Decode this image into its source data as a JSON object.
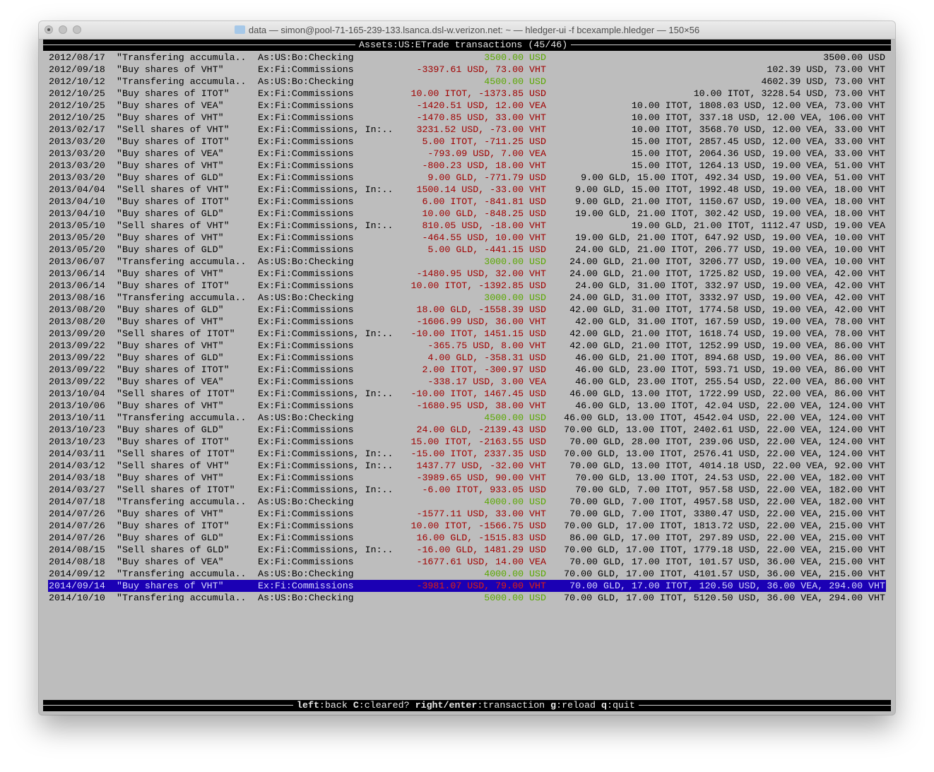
{
  "window": {
    "title": "data — simon@pool-71-165-239-133.lsanca.dsl-w.verizon.net: ~ — hledger-ui -f bcexample.hledger — 150×56"
  },
  "header": {
    "account": "Assets:US:ETrade",
    "label": "transactions",
    "count": "(45/46)"
  },
  "footer": {
    "keys": [
      {
        "key": "left",
        "action": "back"
      },
      {
        "key": "C",
        "action": "cleared?"
      },
      {
        "key": "right/enter",
        "action": "transaction"
      },
      {
        "key": "g",
        "action": "reload"
      },
      {
        "key": "q",
        "action": "quit"
      }
    ]
  },
  "colors": {
    "background": "#bdbdbd",
    "positive": "#5aa800",
    "negative": "#a00000",
    "selected_bg": "#1b00b4",
    "selected_amount": "#e02010"
  },
  "selected_index": 44,
  "rows": [
    [
      "2012/08/17",
      "\"Transfering accumula..",
      "As:US:Bo:Checking",
      "3500.00 USD",
      "positive",
      "3500.00 USD"
    ],
    [
      "2012/09/18",
      "\"Buy shares of VHT\"",
      "Ex:Fi:Commissions",
      "-3397.61 USD, 73.00 VHT",
      "negative",
      "102.39 USD, 73.00 VHT"
    ],
    [
      "2012/10/12",
      "\"Transfering accumula..",
      "As:US:Bo:Checking",
      "4500.00 USD",
      "positive",
      "4602.39 USD, 73.00 VHT"
    ],
    [
      "2012/10/25",
      "\"Buy shares of ITOT\"",
      "Ex:Fi:Commissions",
      "10.00 ITOT, -1373.85 USD",
      "negative",
      "10.00 ITOT, 3228.54 USD, 73.00 VHT"
    ],
    [
      "2012/10/25",
      "\"Buy shares of VEA\"",
      "Ex:Fi:Commissions",
      "-1420.51 USD, 12.00 VEA",
      "negative",
      "10.00 ITOT, 1808.03 USD, 12.00 VEA, 73.00 VHT"
    ],
    [
      "2012/10/25",
      "\"Buy shares of VHT\"",
      "Ex:Fi:Commissions",
      "-1470.85 USD, 33.00 VHT",
      "negative",
      "10.00 ITOT, 337.18 USD, 12.00 VEA, 106.00 VHT"
    ],
    [
      "2013/02/17",
      "\"Sell shares of VHT\"",
      "Ex:Fi:Commissions, In:..",
      "3231.52 USD, -73.00 VHT",
      "negative",
      "10.00 ITOT, 3568.70 USD, 12.00 VEA, 33.00 VHT"
    ],
    [
      "2013/03/20",
      "\"Buy shares of ITOT\"",
      "Ex:Fi:Commissions",
      "5.00 ITOT, -711.25 USD",
      "negative",
      "15.00 ITOT, 2857.45 USD, 12.00 VEA, 33.00 VHT"
    ],
    [
      "2013/03/20",
      "\"Buy shares of VEA\"",
      "Ex:Fi:Commissions",
      "-793.09 USD, 7.00 VEA",
      "negative",
      "15.00 ITOT, 2064.36 USD, 19.00 VEA, 33.00 VHT"
    ],
    [
      "2013/03/20",
      "\"Buy shares of VHT\"",
      "Ex:Fi:Commissions",
      "-800.23 USD, 18.00 VHT",
      "negative",
      "15.00 ITOT, 1264.13 USD, 19.00 VEA, 51.00 VHT"
    ],
    [
      "2013/03/20",
      "\"Buy shares of GLD\"",
      "Ex:Fi:Commissions",
      "9.00 GLD, -771.79 USD",
      "negative",
      "9.00 GLD, 15.00 ITOT, 492.34 USD, 19.00 VEA, 51.00 VHT"
    ],
    [
      "2013/04/04",
      "\"Sell shares of VHT\"",
      "Ex:Fi:Commissions, In:..",
      "1500.14 USD, -33.00 VHT",
      "negative",
      "9.00 GLD, 15.00 ITOT, 1992.48 USD, 19.00 VEA, 18.00 VHT"
    ],
    [
      "2013/04/10",
      "\"Buy shares of ITOT\"",
      "Ex:Fi:Commissions",
      "6.00 ITOT, -841.81 USD",
      "negative",
      "9.00 GLD, 21.00 ITOT, 1150.67 USD, 19.00 VEA, 18.00 VHT"
    ],
    [
      "2013/04/10",
      "\"Buy shares of GLD\"",
      "Ex:Fi:Commissions",
      "10.00 GLD, -848.25 USD",
      "negative",
      "19.00 GLD, 21.00 ITOT, 302.42 USD, 19.00 VEA, 18.00 VHT"
    ],
    [
      "2013/05/10",
      "\"Sell shares of VHT\"",
      "Ex:Fi:Commissions, In:..",
      "810.05 USD, -18.00 VHT",
      "negative",
      "19.00 GLD, 21.00 ITOT, 1112.47 USD, 19.00 VEA"
    ],
    [
      "2013/05/20",
      "\"Buy shares of VHT\"",
      "Ex:Fi:Commissions",
      "-464.55 USD, 10.00 VHT",
      "negative",
      "19.00 GLD, 21.00 ITOT, 647.92 USD, 19.00 VEA, 10.00 VHT"
    ],
    [
      "2013/05/20",
      "\"Buy shares of GLD\"",
      "Ex:Fi:Commissions",
      "5.00 GLD, -441.15 USD",
      "negative",
      "24.00 GLD, 21.00 ITOT, 206.77 USD, 19.00 VEA, 10.00 VHT"
    ],
    [
      "2013/06/07",
      "\"Transfering accumula..",
      "As:US:Bo:Checking",
      "3000.00 USD",
      "positive",
      "24.00 GLD, 21.00 ITOT, 3206.77 USD, 19.00 VEA, 10.00 VHT"
    ],
    [
      "2013/06/14",
      "\"Buy shares of VHT\"",
      "Ex:Fi:Commissions",
      "-1480.95 USD, 32.00 VHT",
      "negative",
      "24.00 GLD, 21.00 ITOT, 1725.82 USD, 19.00 VEA, 42.00 VHT"
    ],
    [
      "2013/06/14",
      "\"Buy shares of ITOT\"",
      "Ex:Fi:Commissions",
      "10.00 ITOT, -1392.85 USD",
      "negative",
      "24.00 GLD, 31.00 ITOT, 332.97 USD, 19.00 VEA, 42.00 VHT"
    ],
    [
      "2013/08/16",
      "\"Transfering accumula..",
      "As:US:Bo:Checking",
      "3000.00 USD",
      "positive",
      "24.00 GLD, 31.00 ITOT, 3332.97 USD, 19.00 VEA, 42.00 VHT"
    ],
    [
      "2013/08/20",
      "\"Buy shares of GLD\"",
      "Ex:Fi:Commissions",
      "18.00 GLD, -1558.39 USD",
      "negative",
      "42.00 GLD, 31.00 ITOT, 1774.58 USD, 19.00 VEA, 42.00 VHT"
    ],
    [
      "2013/08/20",
      "\"Buy shares of VHT\"",
      "Ex:Fi:Commissions",
      "-1606.99 USD, 36.00 VHT",
      "negative",
      "42.00 GLD, 31.00 ITOT, 167.59 USD, 19.00 VEA, 78.00 VHT"
    ],
    [
      "2013/09/20",
      "\"Sell shares of ITOT\"",
      "Ex:Fi:Commissions, In:..",
      "-10.00 ITOT, 1451.15 USD",
      "negative",
      "42.00 GLD, 21.00 ITOT, 1618.74 USD, 19.00 VEA, 78.00 VHT"
    ],
    [
      "2013/09/22",
      "\"Buy shares of VHT\"",
      "Ex:Fi:Commissions",
      "-365.75 USD, 8.00 VHT",
      "negative",
      "42.00 GLD, 21.00 ITOT, 1252.99 USD, 19.00 VEA, 86.00 VHT"
    ],
    [
      "2013/09/22",
      "\"Buy shares of GLD\"",
      "Ex:Fi:Commissions",
      "4.00 GLD, -358.31 USD",
      "negative",
      "46.00 GLD, 21.00 ITOT, 894.68 USD, 19.00 VEA, 86.00 VHT"
    ],
    [
      "2013/09/22",
      "\"Buy shares of ITOT\"",
      "Ex:Fi:Commissions",
      "2.00 ITOT, -300.97 USD",
      "negative",
      "46.00 GLD, 23.00 ITOT, 593.71 USD, 19.00 VEA, 86.00 VHT"
    ],
    [
      "2013/09/22",
      "\"Buy shares of VEA\"",
      "Ex:Fi:Commissions",
      "-338.17 USD, 3.00 VEA",
      "negative",
      "46.00 GLD, 23.00 ITOT, 255.54 USD, 22.00 VEA, 86.00 VHT"
    ],
    [
      "2013/10/04",
      "\"Sell shares of ITOT\"",
      "Ex:Fi:Commissions, In:..",
      "-10.00 ITOT, 1467.45 USD",
      "negative",
      "46.00 GLD, 13.00 ITOT, 1722.99 USD, 22.00 VEA, 86.00 VHT"
    ],
    [
      "2013/10/06",
      "\"Buy shares of VHT\"",
      "Ex:Fi:Commissions",
      "-1680.95 USD, 38.00 VHT",
      "negative",
      "46.00 GLD, 13.00 ITOT, 42.04 USD, 22.00 VEA, 124.00 VHT"
    ],
    [
      "2013/10/11",
      "\"Transfering accumula..",
      "As:US:Bo:Checking",
      "4500.00 USD",
      "positive",
      "46.00 GLD, 13.00 ITOT, 4542.04 USD, 22.00 VEA, 124.00 VHT"
    ],
    [
      "2013/10/23",
      "\"Buy shares of GLD\"",
      "Ex:Fi:Commissions",
      "24.00 GLD, -2139.43 USD",
      "negative",
      "70.00 GLD, 13.00 ITOT, 2402.61 USD, 22.00 VEA, 124.00 VHT"
    ],
    [
      "2013/10/23",
      "\"Buy shares of ITOT\"",
      "Ex:Fi:Commissions",
      "15.00 ITOT, -2163.55 USD",
      "negative",
      "70.00 GLD, 28.00 ITOT, 239.06 USD, 22.00 VEA, 124.00 VHT"
    ],
    [
      "2014/03/11",
      "\"Sell shares of ITOT\"",
      "Ex:Fi:Commissions, In:..",
      "-15.00 ITOT, 2337.35 USD",
      "negative",
      "70.00 GLD, 13.00 ITOT, 2576.41 USD, 22.00 VEA, 124.00 VHT"
    ],
    [
      "2014/03/12",
      "\"Sell shares of VHT\"",
      "Ex:Fi:Commissions, In:..",
      "1437.77 USD, -32.00 VHT",
      "negative",
      "70.00 GLD, 13.00 ITOT, 4014.18 USD, 22.00 VEA, 92.00 VHT"
    ],
    [
      "2014/03/18",
      "\"Buy shares of VHT\"",
      "Ex:Fi:Commissions",
      "-3989.65 USD, 90.00 VHT",
      "negative",
      "70.00 GLD, 13.00 ITOT, 24.53 USD, 22.00 VEA, 182.00 VHT"
    ],
    [
      "2014/03/27",
      "\"Sell shares of ITOT\"",
      "Ex:Fi:Commissions, In:..",
      "-6.00 ITOT, 933.05 USD",
      "negative",
      "70.00 GLD, 7.00 ITOT, 957.58 USD, 22.00 VEA, 182.00 VHT"
    ],
    [
      "2014/07/18",
      "\"Transfering accumula..",
      "As:US:Bo:Checking",
      "4000.00 USD",
      "positive",
      "70.00 GLD, 7.00 ITOT, 4957.58 USD, 22.00 VEA, 182.00 VHT"
    ],
    [
      "2014/07/26",
      "\"Buy shares of VHT\"",
      "Ex:Fi:Commissions",
      "-1577.11 USD, 33.00 VHT",
      "negative",
      "70.00 GLD, 7.00 ITOT, 3380.47 USD, 22.00 VEA, 215.00 VHT"
    ],
    [
      "2014/07/26",
      "\"Buy shares of ITOT\"",
      "Ex:Fi:Commissions",
      "10.00 ITOT, -1566.75 USD",
      "negative",
      "70.00 GLD, 17.00 ITOT, 1813.72 USD, 22.00 VEA, 215.00 VHT"
    ],
    [
      "2014/07/26",
      "\"Buy shares of GLD\"",
      "Ex:Fi:Commissions",
      "16.00 GLD, -1515.83 USD",
      "negative",
      "86.00 GLD, 17.00 ITOT, 297.89 USD, 22.00 VEA, 215.00 VHT"
    ],
    [
      "2014/08/15",
      "\"Sell shares of GLD\"",
      "Ex:Fi:Commissions, In:..",
      "-16.00 GLD, 1481.29 USD",
      "negative",
      "70.00 GLD, 17.00 ITOT, 1779.18 USD, 22.00 VEA, 215.00 VHT"
    ],
    [
      "2014/08/18",
      "\"Buy shares of VEA\"",
      "Ex:Fi:Commissions",
      "-1677.61 USD, 14.00 VEA",
      "negative",
      "70.00 GLD, 17.00 ITOT, 101.57 USD, 36.00 VEA, 215.00 VHT"
    ],
    [
      "2014/09/12",
      "\"Transfering accumula..",
      "As:US:Bo:Checking",
      "4000.00 USD",
      "positive",
      "70.00 GLD, 17.00 ITOT, 4101.57 USD, 36.00 VEA, 215.00 VHT"
    ],
    [
      "2014/09/14",
      "\"Buy shares of VHT\"",
      "Ex:Fi:Commissions",
      "-3981.07 USD, 79.00 VHT",
      "negative",
      "70.00 GLD, 17.00 ITOT, 120.50 USD, 36.00 VEA, 294.00 VHT"
    ],
    [
      "2014/10/10",
      "\"Transfering accumula..",
      "As:US:Bo:Checking",
      "5000.00 USD",
      "positive",
      "70.00 GLD, 17.00 ITOT, 5120.50 USD, 36.00 VEA, 294.00 VHT"
    ]
  ]
}
